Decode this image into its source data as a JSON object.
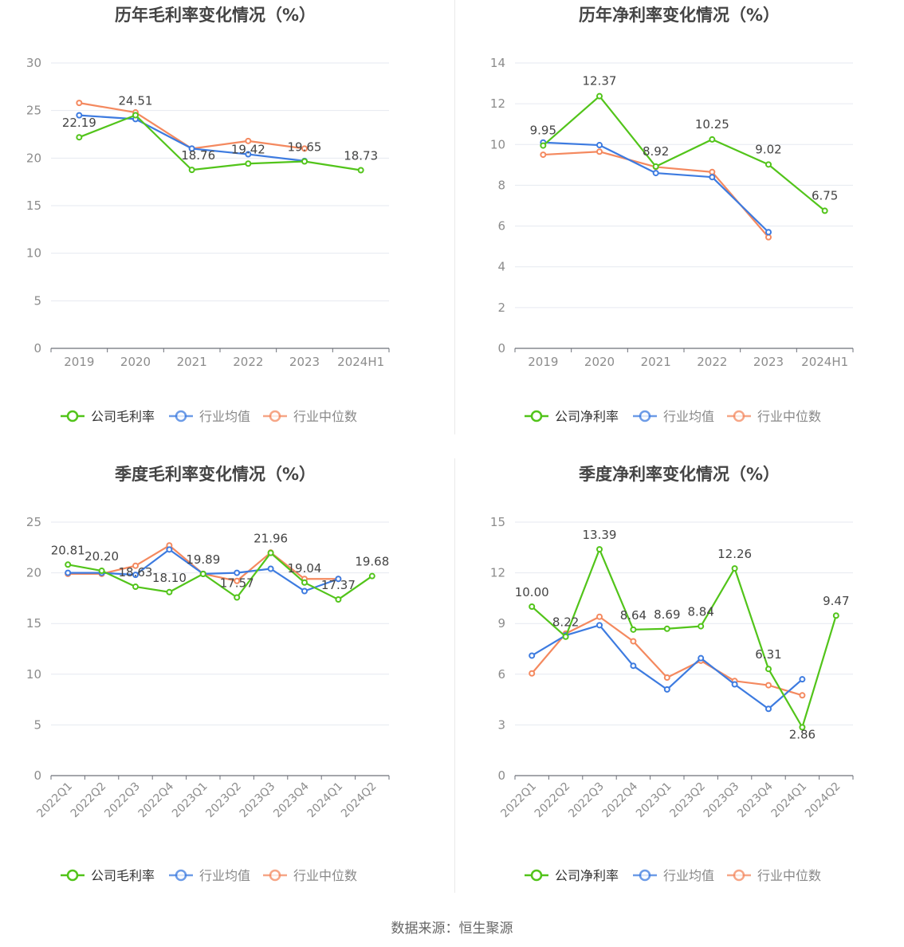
{
  "colors": {
    "company": "#52c41a",
    "avg": "#3d7be0",
    "median": "#f4895f",
    "grid": "#e6e9f0",
    "axis": "#6e7079",
    "tick": "#8c8c8c",
    "title": "#444444",
    "label": "#444444"
  },
  "source": "数据来源：恒生聚源",
  "chart_data": [
    {
      "type": "line",
      "title": "历年毛利率变化情况（%）",
      "categories": [
        "2019",
        "2020",
        "2021",
        "2022",
        "2023",
        "2024H1"
      ],
      "ylim": [
        0,
        30
      ],
      "yticks": [
        0,
        5,
        10,
        15,
        20,
        25,
        30
      ],
      "grid": true,
      "legend": "bottom-center",
      "series": [
        {
          "name": "公司毛利率",
          "key": "company",
          "values": [
            22.19,
            24.51,
            18.76,
            19.42,
            19.65,
            18.73
          ],
          "labels": [
            "22.19",
            "24.51",
            "18.76",
            "19.42",
            "19.65",
            "18.73"
          ]
        },
        {
          "name": "行业均值",
          "key": "avg",
          "values": [
            24.5,
            24.1,
            21.0,
            20.4,
            19.7,
            null
          ]
        },
        {
          "name": "行业中位数",
          "key": "median",
          "values": [
            25.8,
            24.8,
            21.0,
            21.8,
            21.0,
            null
          ]
        }
      ]
    },
    {
      "type": "line",
      "title": "历年净利率变化情况（%）",
      "categories": [
        "2019",
        "2020",
        "2021",
        "2022",
        "2023",
        "2024H1"
      ],
      "ylim": [
        0,
        14
      ],
      "yticks": [
        0,
        2,
        4,
        6,
        8,
        10,
        12,
        14
      ],
      "grid": true,
      "legend": "bottom-center",
      "series": [
        {
          "name": "公司净利率",
          "key": "company",
          "values": [
            9.95,
            12.37,
            8.92,
            10.25,
            9.02,
            6.75
          ],
          "labels": [
            "9.95",
            "12.37",
            "8.92",
            "10.25",
            "9.02",
            "6.75"
          ]
        },
        {
          "name": "行业均值",
          "key": "avg",
          "values": [
            10.1,
            9.97,
            8.6,
            8.4,
            5.7,
            null
          ]
        },
        {
          "name": "行业中位数",
          "key": "median",
          "values": [
            9.5,
            9.65,
            8.9,
            8.65,
            5.45,
            null
          ]
        }
      ]
    },
    {
      "type": "line",
      "title": "季度毛利率变化情况（%）",
      "categories": [
        "2022Q1",
        "2022Q2",
        "2022Q3",
        "2022Q4",
        "2023Q1",
        "2023Q2",
        "2023Q3",
        "2023Q4",
        "2024Q1",
        "2024Q2"
      ],
      "ylim": [
        0,
        25
      ],
      "yticks": [
        0,
        5,
        10,
        15,
        20,
        25
      ],
      "grid": true,
      "legend": "bottom-center",
      "series": [
        {
          "name": "公司毛利率",
          "key": "company",
          "values": [
            20.81,
            20.2,
            18.63,
            18.1,
            19.89,
            17.57,
            21.96,
            19.04,
            17.37,
            19.68
          ],
          "labels": [
            "20.81",
            "20.20",
            "18.63",
            "18.10",
            "19.89",
            "17.57",
            "21.96",
            "19.04",
            "17.37",
            "19.68"
          ]
        },
        {
          "name": "行业均值",
          "key": "avg",
          "values": [
            20.0,
            20.0,
            19.8,
            22.3,
            19.9,
            20.0,
            20.4,
            18.2,
            19.4,
            null
          ]
        },
        {
          "name": "行业中位数",
          "key": "median",
          "values": [
            19.9,
            19.9,
            20.7,
            22.7,
            19.9,
            19.2,
            22.0,
            19.4,
            19.4,
            null
          ]
        }
      ]
    },
    {
      "type": "line",
      "title": "季度净利率变化情况（%）",
      "categories": [
        "2022Q1",
        "2022Q2",
        "2022Q3",
        "2022Q4",
        "2023Q1",
        "2023Q2",
        "2023Q3",
        "2023Q4",
        "2024Q1",
        "2024Q2"
      ],
      "ylim": [
        0,
        15
      ],
      "yticks": [
        0,
        3,
        6,
        9,
        12,
        15
      ],
      "grid": true,
      "legend": "bottom-center",
      "series": [
        {
          "name": "公司净利率",
          "key": "company",
          "values": [
            10.0,
            8.22,
            13.39,
            8.64,
            8.69,
            8.84,
            12.26,
            6.31,
            2.86,
            9.47
          ],
          "labels": [
            "10.00",
            "8.22",
            "13.39",
            "8.64",
            "8.69",
            "8.84",
            "12.26",
            "6.31",
            "2.86",
            "9.47"
          ]
        },
        {
          "name": "行业均值",
          "key": "avg",
          "values": [
            7.1,
            8.3,
            8.9,
            6.5,
            5.1,
            6.95,
            5.4,
            3.95,
            5.7,
            null
          ]
        },
        {
          "name": "行业中位数",
          "key": "median",
          "values": [
            6.05,
            8.4,
            9.4,
            7.95,
            5.8,
            6.8,
            5.6,
            5.35,
            4.75,
            null
          ]
        }
      ]
    }
  ]
}
